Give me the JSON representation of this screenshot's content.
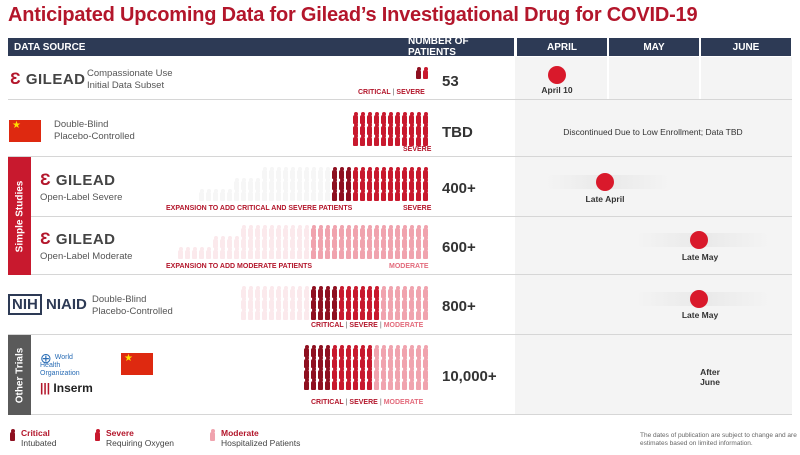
{
  "title": "Anticipated Upcoming Data for Gilead’s Investigational Drug for COVID-19",
  "header": {
    "data_source": "DATA SOURCE",
    "num_patients": "NUMBER OF PATIENTS",
    "april": "APRIL",
    "may": "MAY",
    "june": "JUNE"
  },
  "bands": {
    "simple": "Simple Studies",
    "other": "Other Trials"
  },
  "logos": {
    "gilead": "GILEAD",
    "nih": "NIH",
    "niaid": "NIAID",
    "who1": "World Health",
    "who2": "Organization",
    "inserm": "Inserm"
  },
  "rows": [
    {
      "line1": "Compassionate Use",
      "line2": "Initial Data Subset",
      "count": "53",
      "critical": "CRITICAL",
      "severe": "SEVERE",
      "timeline": "April 10"
    },
    {
      "line1": "Double-Blind",
      "line2": "Placebo-Controlled",
      "count": "TBD",
      "severe": "SEVERE",
      "timeline": "Discontinued Due to Low Enrollment; Data TBD"
    },
    {
      "line1": "Open-Label Severe",
      "count": "400+",
      "expansion": "EXPANSION TO ADD CRITICAL AND SEVERE PATIENTS",
      "severe": "SEVERE",
      "timeline": "Late April"
    },
    {
      "line1": "Open-Label Moderate",
      "count": "600+",
      "expansion": "EXPANSION TO ADD MODERATE PATIENTS",
      "moderate": "MODERATE",
      "timeline": "Late May"
    },
    {
      "line1": "Double-Blind",
      "line2": "Placebo-Controlled",
      "count": "800+",
      "critical": "CRITICAL",
      "severe": "SEVERE",
      "moderate": "MODERATE",
      "timeline": "Late May"
    },
    {
      "count": "10,000+",
      "critical": "CRITICAL",
      "severe": "SEVERE",
      "moderate": "MODERATE",
      "timeline1": "After",
      "timeline2": "June"
    }
  ],
  "legend": {
    "critical_title": "Critical",
    "critical_sub": "Intubated",
    "severe_title": "Severe",
    "severe_sub": "Requiring Oxygen",
    "moderate_title": "Moderate",
    "moderate_sub": "Hospitalized Patients"
  },
  "note": "The dates of publication are subject to change and are estimates based on limited information.",
  "colors": {
    "brand_red": "#b3162b",
    "critical": "#8e1020",
    "severe": "#c8192e",
    "moderate": "#f0a3ae",
    "header": "#2d3a55",
    "band": "#c8192e",
    "band_other": "#5a5a5a"
  }
}
